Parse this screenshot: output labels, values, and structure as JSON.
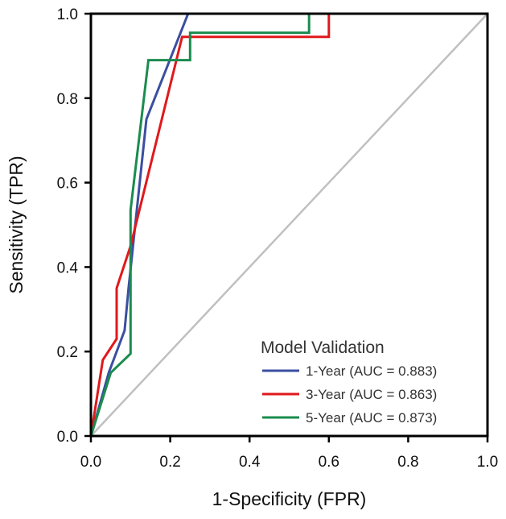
{
  "chart_data": {
    "type": "line",
    "title": "",
    "xlabel": "1-Specificity (FPR)",
    "ylabel": "Sensitivity (TPR)",
    "xlim": [
      0,
      1
    ],
    "ylim": [
      0,
      1
    ],
    "xticks": [
      "0.0",
      "0.2",
      "0.4",
      "0.6",
      "0.8",
      "1.0"
    ],
    "yticks": [
      "0.0",
      "0.2",
      "0.4",
      "0.6",
      "0.8",
      "1.0"
    ],
    "grid": false,
    "legend": {
      "title": "Model Validation",
      "placement": "bottom-right"
    },
    "reference_line": {
      "color": "#c0c0c0",
      "x": [
        0,
        1
      ],
      "y": [
        0,
        1
      ]
    },
    "series": [
      {
        "name": "1-Year (AUC = 0.883)",
        "color": "#3b4fa0",
        "x": [
          0,
          0.045,
          0.085,
          0.095,
          0.14,
          0.245,
          0.55,
          1.0
        ],
        "y": [
          0,
          0.15,
          0.25,
          0.35,
          0.75,
          1.0,
          1.0,
          1.0
        ]
      },
      {
        "name": "3-Year (AUC = 0.863)",
        "color": "#e0191b",
        "x": [
          0,
          0.03,
          0.065,
          0.065,
          0.1,
          0.23,
          0.6,
          0.6,
          1.0
        ],
        "y": [
          0,
          0.18,
          0.23,
          0.35,
          0.45,
          0.945,
          0.945,
          1.0,
          1.0
        ]
      },
      {
        "name": "5-Year (AUC = 0.873)",
        "color": "#1a8c4e",
        "x": [
          0,
          0.05,
          0.1,
          0.1,
          0.145,
          0.25,
          0.25,
          0.55,
          0.55,
          1.0
        ],
        "y": [
          0,
          0.15,
          0.195,
          0.535,
          0.89,
          0.89,
          0.955,
          0.955,
          1.0,
          1.0
        ]
      }
    ]
  }
}
